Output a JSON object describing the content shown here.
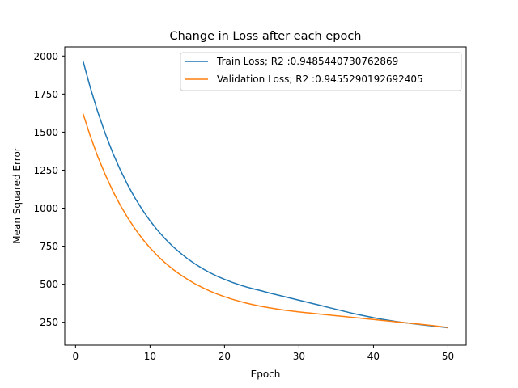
{
  "chart_data": {
    "type": "line",
    "title": "Change in Loss after each epoch",
    "xlabel": "Epoch",
    "ylabel": "Mean Squared Error",
    "xlim": [
      -1.45,
      52.45
    ],
    "ylim": [
      99.5,
      2060
    ],
    "xticks": [
      0,
      10,
      20,
      30,
      40,
      50
    ],
    "yticks": [
      250,
      500,
      750,
      1000,
      1250,
      1500,
      1750,
      2000
    ],
    "legend_position": "upper-right",
    "series": [
      {
        "name": "Train Loss; R2 :0.9485440730762869",
        "color": "#1f77b4",
        "x": [
          1,
          2,
          3,
          4,
          5,
          6,
          7,
          8,
          9,
          10,
          11,
          12,
          13,
          14,
          15,
          16,
          17,
          18,
          19,
          20,
          21,
          22,
          23,
          24,
          25,
          26,
          27,
          28,
          29,
          30,
          31,
          32,
          33,
          34,
          35,
          36,
          37,
          38,
          39,
          40,
          41,
          42,
          43,
          44,
          45,
          46,
          47,
          48,
          49,
          50
        ],
        "values": [
          1968,
          1789,
          1630,
          1489,
          1363,
          1252,
          1153,
          1065,
          987,
          917,
          855,
          800,
          751,
          708,
          669,
          635,
          604,
          577,
          553,
          532,
          513,
          496,
          481,
          468,
          456,
          443,
          431,
          419,
          407,
          395,
          383,
          371,
          359,
          347,
          335,
          323,
          311,
          300,
          290,
          280,
          271,
          263,
          255,
          248,
          242,
          236,
          230,
          225,
          220,
          214
        ]
      },
      {
        "name": "Validation Loss; R2 :0.9455290192692405",
        "color": "#ff7f0e",
        "x": [
          1,
          2,
          3,
          4,
          5,
          6,
          7,
          8,
          9,
          10,
          11,
          12,
          13,
          14,
          15,
          16,
          17,
          18,
          19,
          20,
          21,
          22,
          23,
          24,
          25,
          26,
          27,
          28,
          29,
          30,
          31,
          32,
          33,
          34,
          35,
          36,
          37,
          38,
          39,
          40,
          41,
          42,
          43,
          44,
          45,
          46,
          47,
          48,
          49,
          50
        ],
        "values": [
          1622,
          1471,
          1337,
          1219,
          1113,
          1020,
          937,
          863,
          797,
          739,
          687,
          642,
          601,
          565,
          533,
          504,
          479,
          456,
          436,
          418,
          402,
          388,
          375,
          364,
          354,
          345,
          337,
          330,
          324,
          318,
          313,
          308,
          303,
          298,
          293,
          288,
          283,
          278,
          273,
          268,
          263,
          258,
          253,
          248,
          243,
          238,
          233,
          228,
          222,
          216
        ]
      }
    ]
  }
}
